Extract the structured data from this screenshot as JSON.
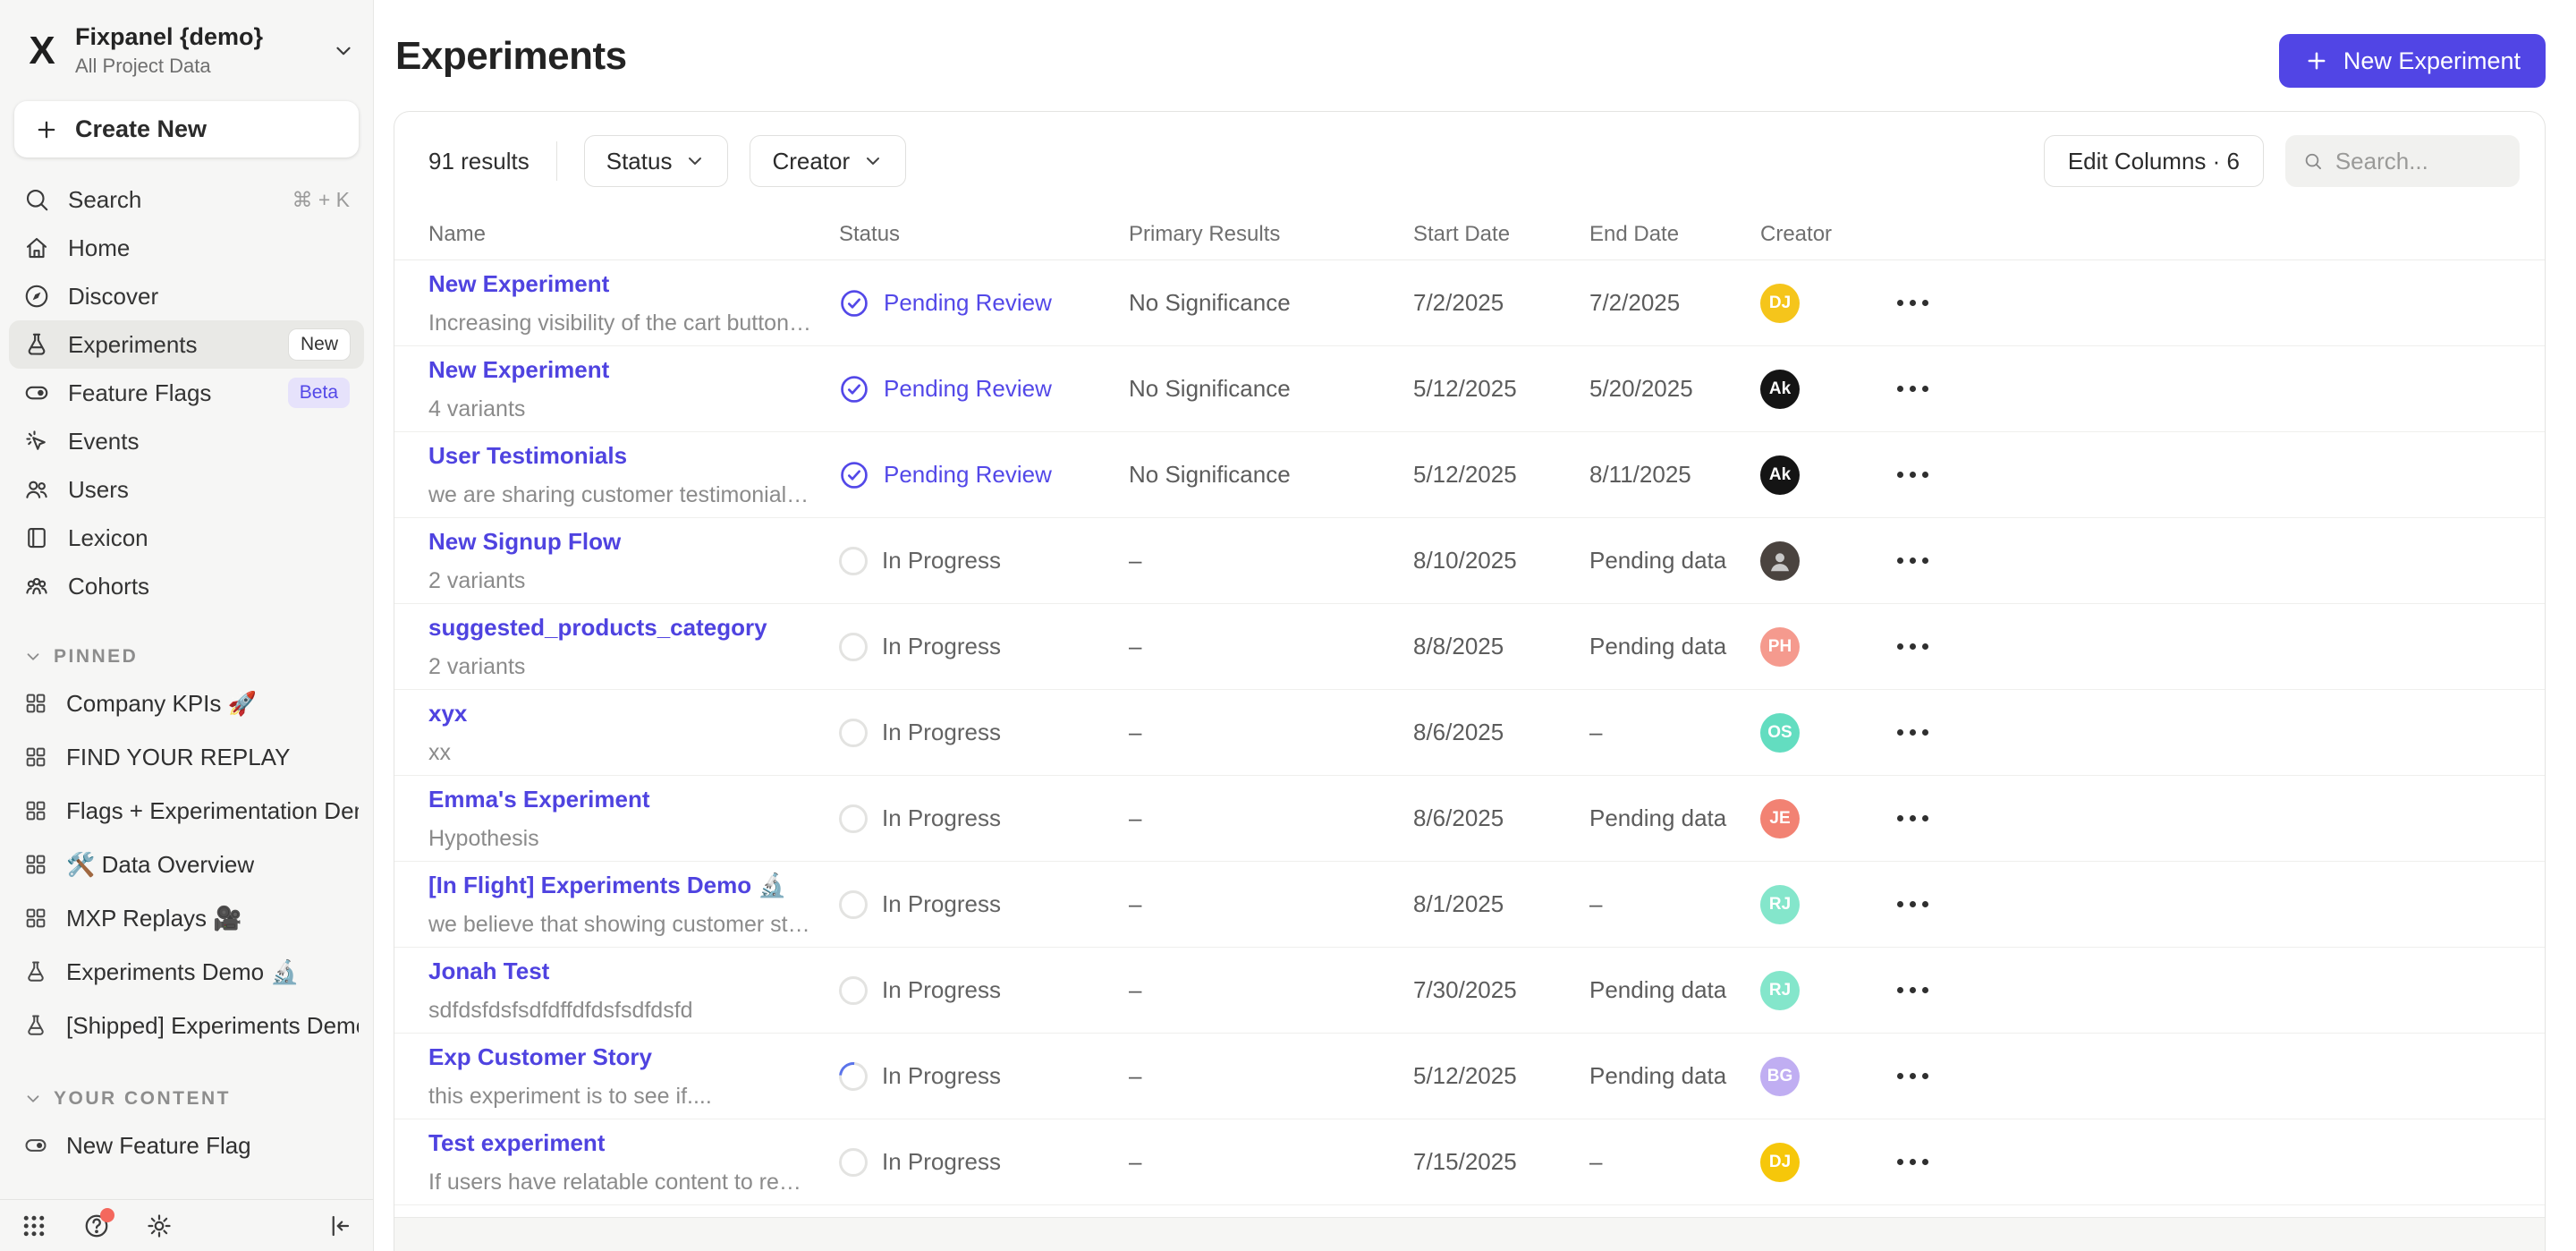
{
  "workspace": {
    "name": "Fixpanel {demo}",
    "subtitle": "All Project Data",
    "logo": "x-mark"
  },
  "sidebar": {
    "create_new_label": "Create New",
    "nav": [
      {
        "label": "Search",
        "icon": "search-icon",
        "shortcut": "⌘ + K"
      },
      {
        "label": "Home",
        "icon": "home-icon"
      },
      {
        "label": "Discover",
        "icon": "compass-icon"
      },
      {
        "label": "Experiments",
        "icon": "flask-icon",
        "badge": "New",
        "badge_style": "new",
        "active": true
      },
      {
        "label": "Feature Flags",
        "icon": "toggle-icon",
        "badge": "Beta",
        "badge_style": "beta"
      },
      {
        "label": "Events",
        "icon": "cursor-click-icon"
      },
      {
        "label": "Users",
        "icon": "users-icon"
      },
      {
        "label": "Lexicon",
        "icon": "book-icon"
      },
      {
        "label": "Cohorts",
        "icon": "cohorts-icon"
      }
    ],
    "sections": [
      {
        "title": "PINNED",
        "items": [
          {
            "label": "Company KPIs 🚀",
            "icon": "board-icon"
          },
          {
            "label": "FIND YOUR REPLAY",
            "icon": "board-icon"
          },
          {
            "label": "Flags + Experimentation Demo ,",
            "icon": "board-icon"
          },
          {
            "label": "🛠️ Data Overview",
            "icon": "board-icon"
          },
          {
            "label": "MXP Replays 🎥",
            "icon": "board-icon"
          },
          {
            "label": "Experiments Demo 🔬",
            "icon": "flask-icon"
          },
          {
            "label": "[Shipped] Experiments Demo 🖊️",
            "icon": "flask-icon"
          }
        ]
      },
      {
        "title": "YOUR CONTENT",
        "items": [
          {
            "label": "New Feature Flag",
            "icon": "toggle-icon"
          }
        ]
      }
    ],
    "footer_icons": [
      "apps-grid-icon",
      "help-icon",
      "gear-icon"
    ],
    "collapse_icon": "collapse-sidebar-icon",
    "help_has_notification": true
  },
  "header": {
    "title": "Experiments",
    "new_button_label": "New Experiment"
  },
  "toolbar": {
    "results_text": "91 results",
    "filters": [
      {
        "label": "Status"
      },
      {
        "label": "Creator"
      }
    ],
    "edit_columns_label": "Edit Columns · 6",
    "search_placeholder": "Search..."
  },
  "colors": {
    "accent": "#5145e5",
    "link": "#4f43e0",
    "pending_review": "#5348e8",
    "beta_badge_bg": "#e6e2fb",
    "sidebar_bg": "#f6f6f5",
    "notification_dot": "#f4685d"
  },
  "table": {
    "columns": [
      "Name",
      "Status",
      "Primary Results",
      "Start Date",
      "End Date",
      "Creator"
    ],
    "rows": [
      {
        "name": "New Experiment",
        "desc": "Increasing visibility of the cart button will l...",
        "status": "Pending Review",
        "status_type": "review",
        "primary": "No Significance",
        "start": "7/2/2025",
        "end": "7/2/2025",
        "avatar": {
          "type": "initials",
          "text": "DJ",
          "bg": "#f5c51b"
        }
      },
      {
        "name": "New Experiment",
        "desc": "4 variants",
        "status": "Pending Review",
        "status_type": "review",
        "primary": "No Significance",
        "start": "5/12/2025",
        "end": "5/20/2025",
        "avatar": {
          "type": "initials",
          "text": "Ak",
          "bg": "#141414"
        }
      },
      {
        "name": "User Testimonials",
        "desc": "we are sharing customer testimonials as in...",
        "status": "Pending Review",
        "status_type": "review",
        "primary": "No Significance",
        "start": "5/12/2025",
        "end": "8/11/2025",
        "avatar": {
          "type": "initials",
          "text": "Ak",
          "bg": "#141414"
        }
      },
      {
        "name": "New Signup Flow",
        "desc": "2 variants",
        "status": "In Progress",
        "status_type": "progress",
        "primary": "–",
        "start": "8/10/2025",
        "end": "Pending data",
        "avatar": {
          "type": "photo",
          "bg": "#4a433f"
        }
      },
      {
        "name": "suggested_products_category",
        "desc": "2 variants",
        "status": "In Progress",
        "status_type": "progress",
        "primary": "–",
        "start": "8/8/2025",
        "end": "Pending data",
        "avatar": {
          "type": "initials",
          "text": "PH",
          "bg": "#f59a8e"
        }
      },
      {
        "name": "xyx",
        "desc": "xx",
        "status": "In Progress",
        "status_type": "progress",
        "primary": "–",
        "start": "8/6/2025",
        "end": "–",
        "avatar": {
          "type": "initials",
          "text": "OS",
          "bg": "#63ddc0"
        }
      },
      {
        "name": "Emma's Experiment",
        "desc": "Hypothesis",
        "status": "In Progress",
        "status_type": "progress",
        "primary": "–",
        "start": "8/6/2025",
        "end": "Pending data",
        "avatar": {
          "type": "initials",
          "text": "JE",
          "bg": "#f2population"
        }
      },
      {
        "name": "[In Flight] Experiments Demo 🔬",
        "desc": "we believe that showing customer stories ...",
        "status": "In Progress",
        "status_type": "progress",
        "primary": "–",
        "start": "8/1/2025",
        "end": "–",
        "avatar": {
          "type": "initials",
          "text": "RJ",
          "bg": "#84e6cb"
        }
      },
      {
        "name": "Jonah Test",
        "desc": "sdfdsfdsfsdfdffdfdsfsdfdsfd",
        "status": "In Progress",
        "status_type": "progress",
        "primary": "–",
        "start": "7/30/2025",
        "end": "Pending data",
        "avatar": {
          "type": "initials",
          "text": "RJ",
          "bg": "#84e6cb"
        }
      },
      {
        "name": "Exp Customer Story",
        "desc": "this experiment is to see if....",
        "status": "In Progress",
        "status_type": "progress",
        "spinner": true,
        "primary": "–",
        "start": "5/12/2025",
        "end": "Pending data",
        "avatar": {
          "type": "initials",
          "text": "BG",
          "bg": "#c0aef2"
        }
      },
      {
        "name": "Test experiment",
        "desc": "If users have relatable content to read they...",
        "status": "In Progress",
        "status_type": "progress",
        "primary": "–",
        "start": "7/15/2025",
        "end": "–",
        "avatar": {
          "type": "initials",
          "text": "DJ",
          "bg": "#f6c70a"
        }
      }
    ]
  }
}
